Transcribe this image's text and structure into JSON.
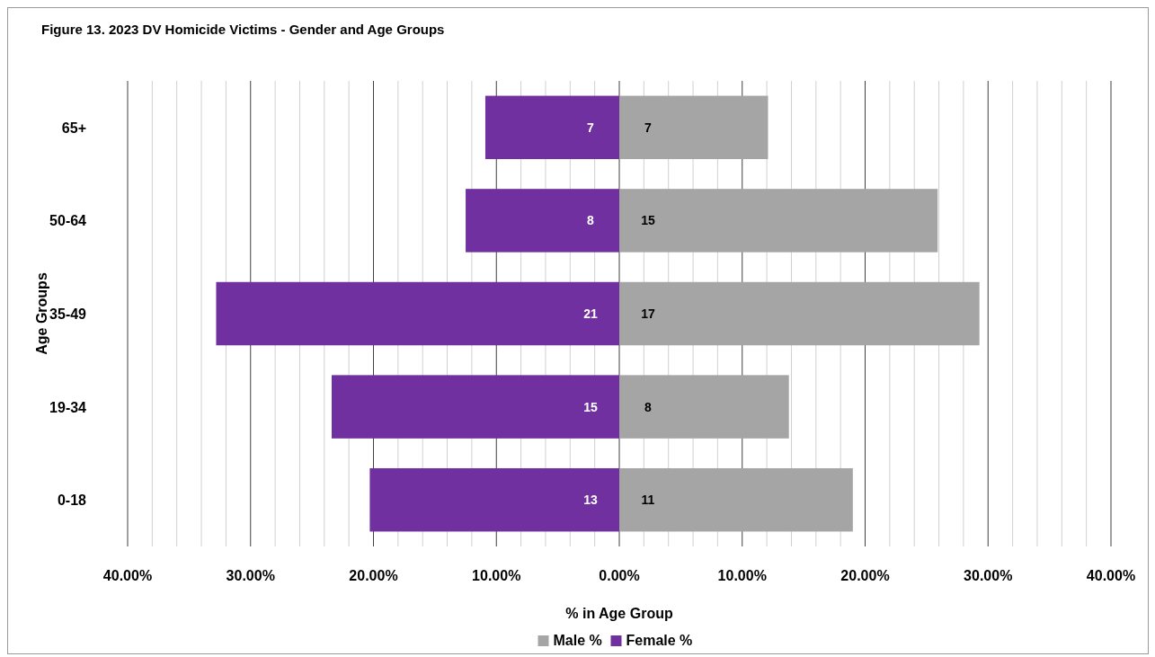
{
  "chart_data": {
    "type": "bar",
    "orientation": "horizontal",
    "stacked": true,
    "title": "Figure 13. 2023 DV Homicide Victims - Gender and Age Groups",
    "xlabel": "% in Age Group",
    "ylabel": "Age Groups",
    "categories": [
      "65+",
      "50-64",
      "35-49",
      "19-34",
      "0-18"
    ],
    "series": [
      {
        "name": "Male %",
        "color": "#a5a5a5",
        "values": [
          12.1,
          25.9,
          29.3,
          13.8,
          19.0
        ]
      },
      {
        "name": "Female %",
        "color": "#7030a0",
        "values": [
          -10.9,
          -12.5,
          -32.8,
          -23.4,
          -20.3
        ]
      }
    ],
    "annotations": [
      "7",
      "15",
      "17",
      "8",
      "11",
      "7",
      "8",
      "21",
      "15",
      "13"
    ],
    "xlim": [
      -40,
      40
    ],
    "xticks": [
      {
        "value": -40,
        "label": "40.00%"
      },
      {
        "value": -38,
        "label": null
      },
      {
        "value": -36,
        "label": null
      },
      {
        "value": -34,
        "label": null
      },
      {
        "value": -32,
        "label": null
      },
      {
        "value": -30,
        "label": "30.00%"
      },
      {
        "value": -28,
        "label": null
      },
      {
        "value": -26,
        "label": null
      },
      {
        "value": -24,
        "label": null
      },
      {
        "value": -22,
        "label": null
      },
      {
        "value": -20,
        "label": "20.00%"
      },
      {
        "value": -18,
        "label": null
      },
      {
        "value": -16,
        "label": null
      },
      {
        "value": -14,
        "label": null
      },
      {
        "value": -12,
        "label": null
      },
      {
        "value": -10,
        "label": "10.00%"
      },
      {
        "value": -8,
        "label": null
      },
      {
        "value": -6,
        "label": null
      },
      {
        "value": -4,
        "label": null
      },
      {
        "value": -2,
        "label": null
      },
      {
        "value": 0,
        "label": "0.00%"
      },
      {
        "value": 2,
        "label": null
      },
      {
        "value": 4,
        "label": null
      },
      {
        "value": 6,
        "label": null
      },
      {
        "value": 8,
        "label": null
      },
      {
        "value": 10,
        "label": "10.00%"
      },
      {
        "value": 12,
        "label": null
      },
      {
        "value": 14,
        "label": null
      },
      {
        "value": 16,
        "label": null
      },
      {
        "value": 18,
        "label": null
      },
      {
        "value": 20,
        "label": "20.00%"
      },
      {
        "value": 22,
        "label": null
      },
      {
        "value": 24,
        "label": null
      },
      {
        "value": 26,
        "label": null
      },
      {
        "value": 28,
        "label": null
      },
      {
        "value": 30,
        "label": "30.00%"
      },
      {
        "value": 32,
        "label": null
      },
      {
        "value": 34,
        "label": null
      },
      {
        "value": 36,
        "label": null
      },
      {
        "value": 38,
        "label": null
      },
      {
        "value": 40,
        "label": "40.00%"
      }
    ],
    "grid": true,
    "legend": "bottom"
  }
}
